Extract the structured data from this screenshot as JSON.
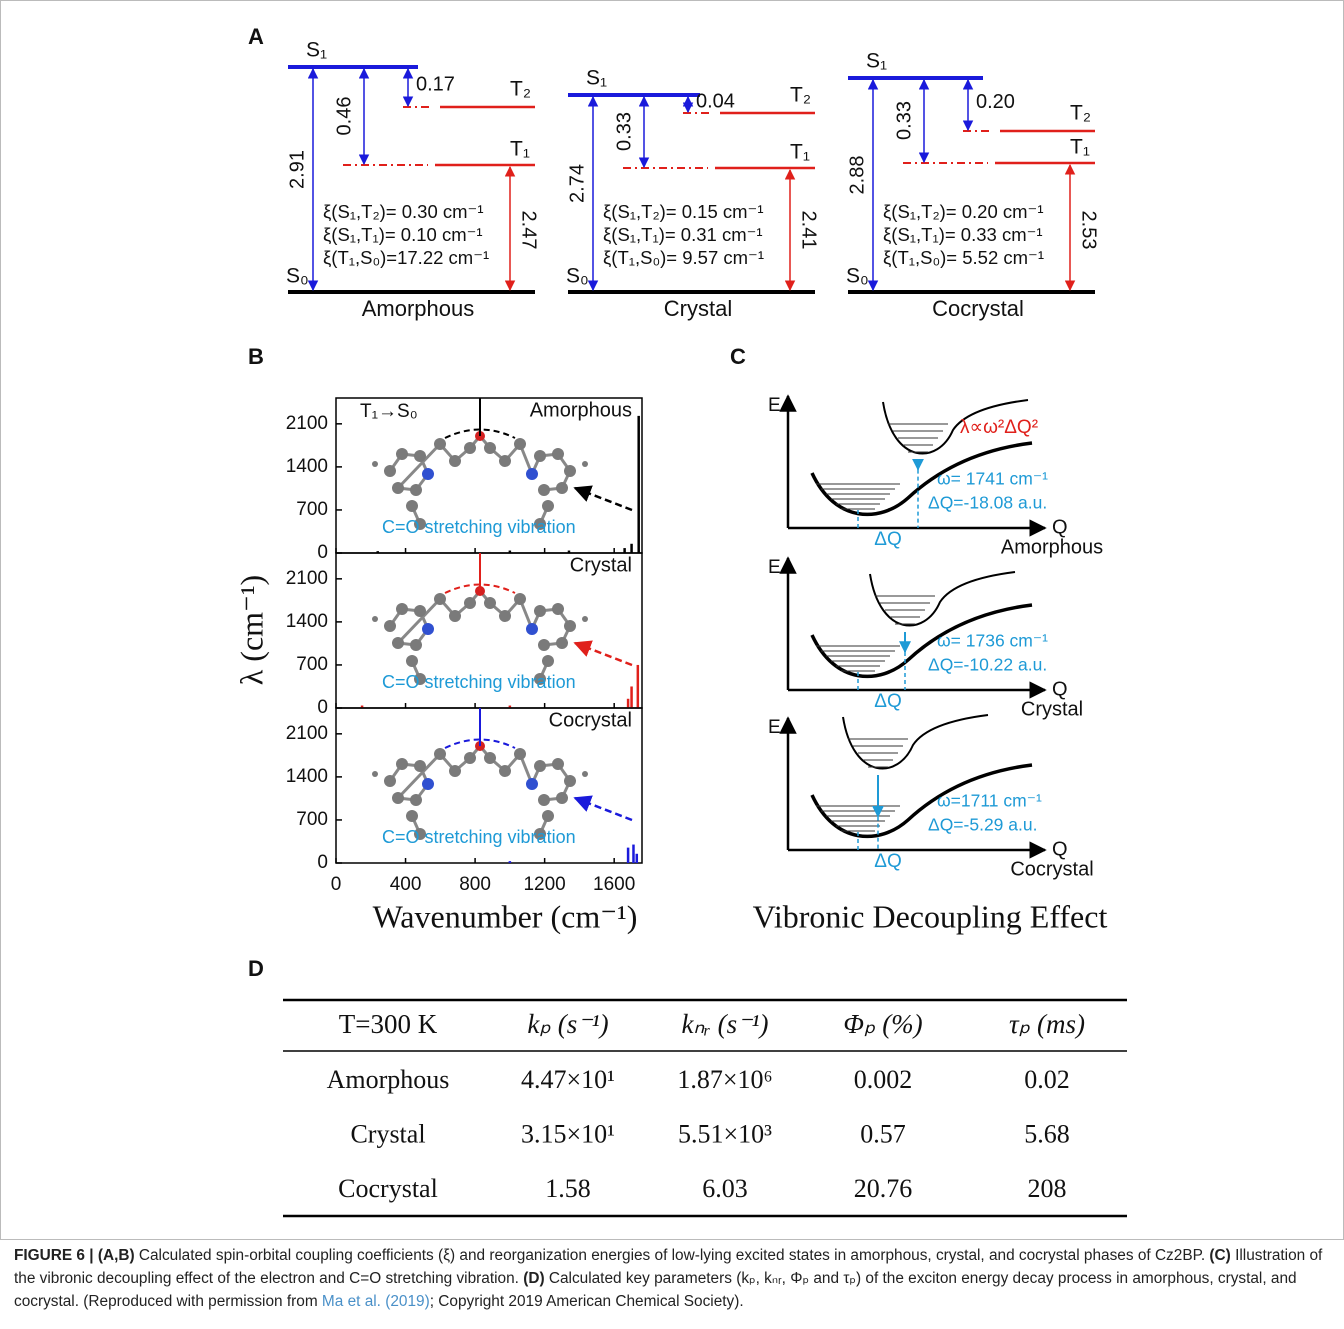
{
  "panel_a": {
    "label": "A",
    "diagrams": [
      {
        "s1": "S₁",
        "t2": "T₂",
        "t1": "T₁",
        "s0": "S₀",
        "e_s1": "2.91",
        "e_s1t1": "0.46",
        "e_s1t2": "0.17",
        "e_t1": "2.47",
        "soc": [
          "ξ(S₁,T₂)= 0.30 cm⁻¹",
          "ξ(S₁,T₁)= 0.10 cm⁻¹",
          "ξ(T₁,S₀)=17.22 cm⁻¹"
        ],
        "name": "Amorphous"
      },
      {
        "s1": "S₁",
        "t2": "T₂",
        "t1": "T₁",
        "s0": "S₀",
        "e_s1": "2.74",
        "e_s1t1": "0.33",
        "e_s1t2": "0.04",
        "e_t1": "2.41",
        "soc": [
          "ξ(S₁,T₂)= 0.15 cm⁻¹",
          "ξ(S₁,T₁)= 0.31 cm⁻¹",
          "ξ(T₁,S₀)= 9.57 cm⁻¹"
        ],
        "name": "Crystal"
      },
      {
        "s1": "S₁",
        "t2": "T₂",
        "t1": "T₁",
        "s0": "S₀",
        "e_s1": "2.88",
        "e_s1t1": "0.33",
        "e_s1t2": "0.20",
        "e_t1": "2.53",
        "soc": [
          "ξ(S₁,T₂)= 0.20 cm⁻¹",
          "ξ(S₁,T₁)= 0.33 cm⁻¹",
          "ξ(T₁,S₀)= 5.52 cm⁻¹"
        ],
        "name": "Cocrystal"
      }
    ]
  },
  "panel_b": {
    "label": "B",
    "type": "bar",
    "ylabel": "λ (cm⁻¹)",
    "xlabel": "Wavenumber (cm⁻¹)",
    "xlim": [
      0,
      1760
    ],
    "xticks": [
      0,
      400,
      800,
      1200,
      1600
    ],
    "ylim": [
      0,
      2520
    ],
    "yticks": [
      0,
      700,
      1400,
      2100
    ],
    "transition": "T₁→S₀",
    "subplots": [
      {
        "name": "Amorphous",
        "color": "#000000",
        "annotation": "C=O stretching vibration",
        "x": [
          240,
          1000,
          1340,
          1660,
          1700,
          1741
        ],
        "values": [
          30,
          40,
          40,
          80,
          150,
          2230
        ]
      },
      {
        "name": "Crystal",
        "color": "#e0201b",
        "annotation": "C=O stretching vibration",
        "x": [
          150,
          1000,
          1680,
          1700,
          1736
        ],
        "values": [
          40,
          40,
          150,
          350,
          700
        ]
      },
      {
        "name": "Cocrystal",
        "color": "#1a1adb",
        "annotation": "C=O stretching vibration",
        "x": [
          1000,
          1680,
          1711,
          1730
        ],
        "values": [
          30,
          250,
          300,
          150
        ]
      }
    ]
  },
  "panel_c": {
    "label": "C",
    "e_label": "E",
    "q_label": "Q",
    "dq_label": "ΔQ",
    "formula": "λ∝ω²ΔQ²",
    "items": [
      {
        "omega": "ω=  1741 cm⁻¹",
        "dq": "ΔQ=-18.08 a.u.",
        "name": "Amorphous"
      },
      {
        "omega": "ω=  1736 cm⁻¹",
        "dq": "ΔQ=-10.22 a.u.",
        "name": "Crystal"
      },
      {
        "omega": "ω=1711 cm⁻¹",
        "dq": "ΔQ=-5.29 a.u.",
        "name": "Cocrystal"
      }
    ],
    "title": "Vibronic Decoupling Effect"
  },
  "panel_d": {
    "label": "D",
    "header": [
      "T=300 K",
      "kₚ (s⁻¹)",
      "kₙᵣ (s⁻¹)",
      "Φₚ (%)",
      "τₚ (ms)"
    ],
    "rows": [
      [
        "Amorphous",
        "4.47×10¹",
        "1.87×10⁶",
        "0.002",
        "0.02"
      ],
      [
        "Crystal",
        "3.15×10¹",
        "5.51×10³",
        "0.57",
        "5.68"
      ],
      [
        "Cocrystal",
        "1.58",
        "6.03",
        "20.76",
        "208"
      ]
    ]
  },
  "caption": [
    "FIGURE 6 | (A,B)",
    " Calculated spin-orbital coupling coefficients (ξ) and reorganization energies of low-lying excited states in amorphous, crystal, and cocrystal phases of Cz2BP. ",
    "(C)",
    " Illustration of the vibronic decoupling effect of the electron and C=O stretching vibration. ",
    "(D)",
    " Calculated key parameters (kₚ, kₙᵣ, Φₚ and τₚ) of the exciton energy decay process in amorphous, crystal, and cocrystal. (Reproduced with permission from ",
    "Ma et al. (2019)",
    "; Copyright 2019 American Chemical Society)."
  ]
}
